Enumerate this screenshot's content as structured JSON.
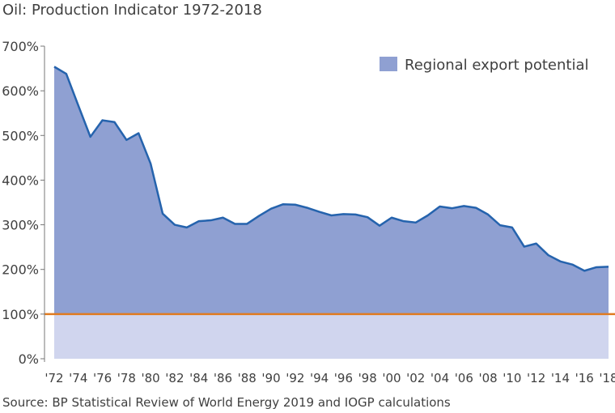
{
  "chart_data": {
    "type": "area",
    "title": "Oil: Production Indicator 1972-2018",
    "source": "Source: BP Statistical Review of World Energy 2019 and IOGP calculations",
    "legend": [
      {
        "label": "Regional export potential",
        "color": "#8fa0d2"
      }
    ],
    "legend_position": "top-right",
    "y_ticks": [
      "0%",
      "100%",
      "200%",
      "300%",
      "400%",
      "500%",
      "600%",
      "700%"
    ],
    "ylim": [
      0,
      700
    ],
    "x_ticks": [
      "'72",
      "'74",
      "'76",
      "'78",
      "'80",
      "'82",
      "'84",
      "'86",
      "'88",
      "'90",
      "'92",
      "'94",
      "'96",
      "'98",
      "'00",
      "'02",
      "'04",
      "'06",
      "'08",
      "'10",
      "'12",
      "'14",
      "'16",
      "'18"
    ],
    "reference_line": {
      "value": 100,
      "color": "#e07b20"
    },
    "colors": {
      "area": "#8fa0d2",
      "line": "#2563ad",
      "below_reference": "#d0d5ee"
    },
    "grid": false,
    "series": [
      {
        "name": "Regional export potential",
        "x": [
          1972,
          1973,
          1974,
          1975,
          1976,
          1977,
          1978,
          1979,
          1980,
          1981,
          1982,
          1983,
          1984,
          1985,
          1986,
          1987,
          1988,
          1989,
          1990,
          1991,
          1992,
          1993,
          1994,
          1995,
          1996,
          1997,
          1998,
          1999,
          2000,
          2001,
          2002,
          2003,
          2004,
          2005,
          2006,
          2007,
          2008,
          2009,
          2010,
          2011,
          2012,
          2013,
          2014,
          2015,
          2016,
          2017,
          2018
        ],
        "values": [
          654,
          638,
          567,
          497,
          534,
          530,
          490,
          505,
          437,
          325,
          300,
          294,
          308,
          310,
          316,
          302,
          302,
          320,
          336,
          346,
          345,
          338,
          329,
          321,
          324,
          323,
          317,
          298,
          316,
          308,
          305,
          321,
          341,
          337,
          342,
          338,
          323,
          299,
          294,
          251,
          258,
          232,
          218,
          211,
          197,
          205,
          206
        ]
      }
    ]
  }
}
